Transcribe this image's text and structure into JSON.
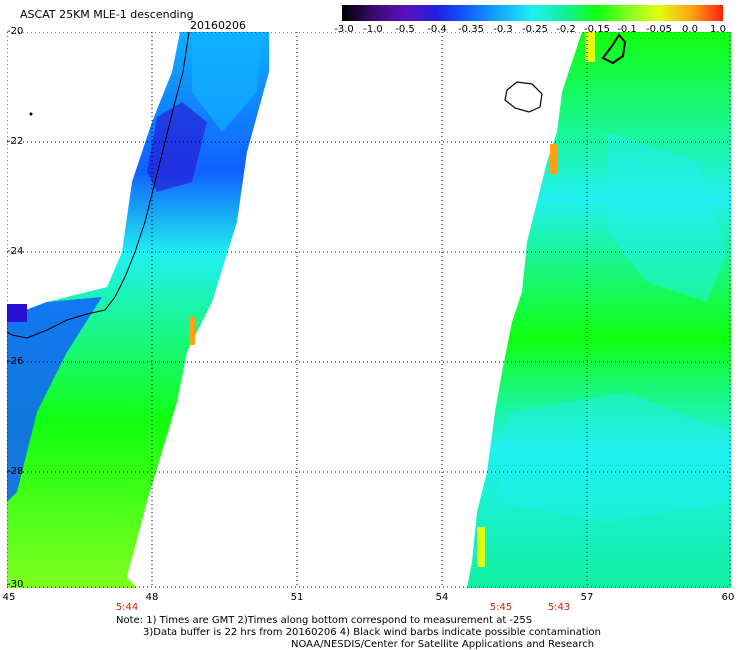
{
  "header": {
    "title": "ASCAT 25KM MLE-1 descending",
    "date": "20160206"
  },
  "colorbar": {
    "labels": [
      "-3.0",
      "-1.0",
      "-0.5",
      "-0.4",
      "-0.35",
      "-0.3",
      "-0.25",
      "-0.2",
      "-0.15",
      "-0.1",
      "-0.05",
      "0.0",
      "1.0"
    ],
    "colors": [
      "#000000",
      "#3a0a6a",
      "#5a10c0",
      "#2020e0",
      "#1060ff",
      "#10b0ff",
      "#20f0f0",
      "#10f0a0",
      "#10ff10",
      "#80ff20",
      "#e0ff10",
      "#ffa010",
      "#ff2010"
    ]
  },
  "map": {
    "lat_labels": [
      "-20",
      "-22",
      "-24",
      "-26",
      "-28",
      "-30"
    ],
    "lon_labels": [
      "45",
      "48",
      "51",
      "54",
      "57",
      "60"
    ],
    "times": [
      "5:44",
      "5:45",
      "5:43"
    ],
    "colors": {
      "deep_blue": "#2a10d0",
      "blue": "#1060ff",
      "cyan": "#20f0f0",
      "aqua_green": "#10f0a0",
      "green": "#10ff10",
      "yellow_green": "#80ff20",
      "yellow": "#e0ff10",
      "orange": "#ffa010"
    }
  },
  "notes": {
    "line1": "Note: 1) Times are GMT 2)Times along bottom correspond to measurement at -25S",
    "line2": "3)Data buffer is 22 hrs from 20160206 4) Black wind barbs indicate possible contamination",
    "line3": "NOAA/NESDIS/Center for Satellite Applications and Research"
  }
}
